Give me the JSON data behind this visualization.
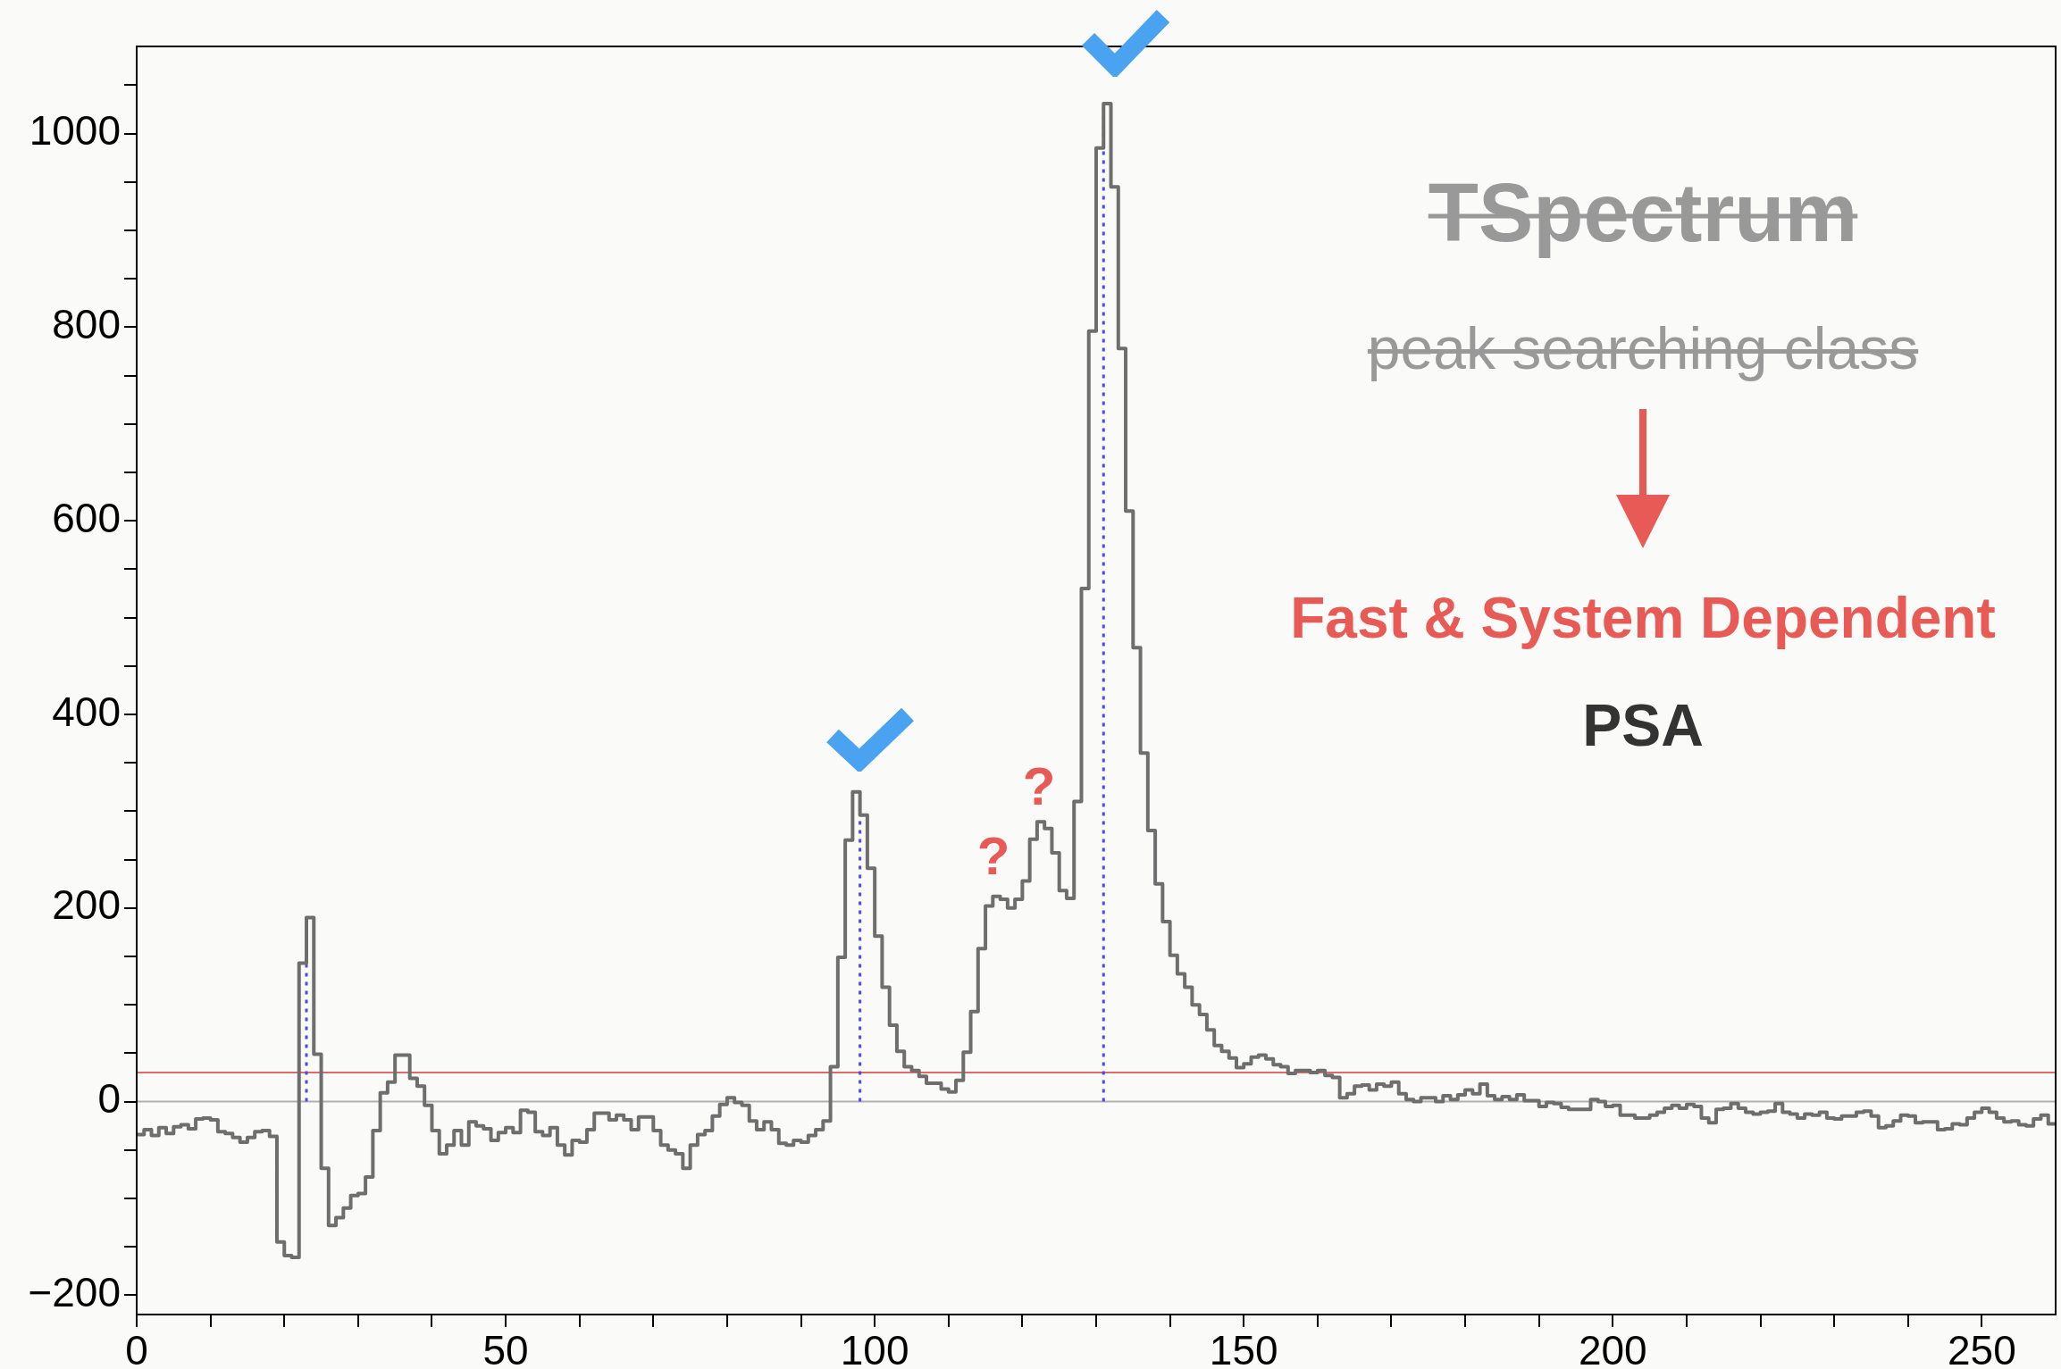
{
  "chart_data": {
    "type": "histogram",
    "bins": [
      0,
      1,
      2,
      3,
      4,
      5,
      6,
      7,
      8,
      9,
      10,
      11,
      12,
      13,
      14,
      15,
      16,
      17,
      18,
      19,
      20,
      21,
      22,
      23,
      24,
      25,
      26,
      27,
      28,
      29,
      30,
      31,
      32,
      33,
      34,
      35,
      36,
      37,
      38,
      39,
      40,
      41,
      42,
      43,
      44,
      45,
      46,
      47,
      48,
      49,
      50,
      51,
      52,
      53,
      54,
      55,
      56,
      57,
      58,
      59,
      60,
      61,
      62,
      63,
      64,
      65,
      66,
      67,
      68,
      69,
      70,
      71,
      72,
      73,
      74,
      75,
      76,
      77,
      78,
      79,
      80,
      81,
      82,
      83,
      84,
      85,
      86,
      87,
      88,
      89,
      90,
      91,
      92,
      93,
      94,
      95,
      96,
      97,
      98,
      99,
      100,
      101,
      102,
      103,
      104,
      105,
      106,
      107,
      108,
      109,
      110,
      111,
      112,
      113,
      114,
      115,
      116,
      117,
      118,
      119,
      120,
      121,
      122,
      123,
      124,
      125,
      126,
      127,
      128,
      129,
      130,
      131,
      132,
      133,
      134,
      135,
      136,
      137,
      138,
      139,
      140,
      141,
      142,
      143,
      144,
      145,
      146,
      147,
      148,
      149,
      150,
      151,
      152,
      153,
      154,
      155,
      156,
      157,
      158,
      159,
      160,
      161,
      162,
      163,
      164,
      165,
      166,
      167,
      168,
      169,
      170,
      171,
      172,
      173,
      174,
      175,
      176,
      177,
      178,
      179,
      180,
      181,
      182,
      183,
      184,
      185,
      186,
      187,
      188,
      189,
      190,
      191,
      192,
      193,
      194,
      195,
      196,
      197,
      198,
      199,
      200,
      201,
      202,
      203,
      204,
      205,
      206,
      207,
      208,
      209,
      210,
      211,
      212,
      213,
      214,
      215,
      216,
      217,
      218,
      219,
      220,
      221,
      222,
      223,
      224,
      225,
      226,
      227,
      228,
      229,
      230,
      231,
      232,
      233,
      234,
      235,
      236,
      237,
      238,
      239,
      240,
      241,
      242,
      243,
      244,
      245,
      246,
      247,
      248,
      249,
      250,
      251,
      252,
      253,
      254,
      255,
      256,
      257,
      258,
      259,
      260
    ],
    "values": [
      -34,
      -29,
      -35,
      -27,
      -33,
      -26,
      -24,
      -28,
      -18,
      -17,
      -19,
      -31,
      -33,
      -37,
      -42,
      -37,
      -31,
      -30,
      -36,
      -145,
      -159,
      -161,
      143,
      190,
      49,
      -69,
      -128,
      -120,
      -110,
      -97,
      -95,
      -78,
      -30,
      9,
      20,
      48,
      48,
      24,
      16,
      -4,
      -30,
      -54,
      -45,
      -30,
      -45,
      -21,
      -25,
      -28,
      -40,
      -32,
      -27,
      -32,
      -9,
      -11,
      -31,
      -35,
      -27,
      -45,
      -55,
      -40,
      -42,
      -29,
      -12,
      -12,
      -19,
      -14,
      -19,
      -29,
      -16,
      -16,
      -30,
      -45,
      -50,
      -54,
      -69,
      -45,
      -34,
      -30,
      -15,
      -3,
      4,
      -1,
      -4,
      -20,
      -29,
      -21,
      -29,
      -43,
      -45,
      -40,
      -42,
      -35,
      -29,
      -20,
      36,
      149,
      270,
      320,
      296,
      241,
      171,
      118,
      79,
      52,
      36,
      32,
      26,
      19,
      19,
      13,
      10,
      22,
      51,
      93,
      158,
      202,
      212,
      209,
      200,
      209,
      228,
      271,
      289,
      282,
      257,
      218,
      210,
      310,
      530,
      796,
      985,
      1031,
      945,
      778,
      610,
      469,
      360,
      280,
      225,
      186,
      151,
      132,
      118,
      100,
      90,
      74,
      58,
      52,
      45,
      35,
      39,
      46,
      48,
      44,
      38,
      36,
      29,
      32,
      32,
      30,
      32,
      27,
      25,
      4,
      8,
      16,
      17,
      12,
      18,
      16,
      20,
      8,
      2,
      0,
      4,
      4,
      0,
      6,
      2,
      7,
      12,
      8,
      18,
      6,
      2,
      5,
      2,
      7,
      1,
      1,
      -5,
      -1,
      -2,
      -6,
      -8,
      -8,
      -8,
      2,
      0,
      -5,
      -4,
      -14,
      -14,
      -17,
      -17,
      -14,
      -11,
      -7,
      -4,
      -7,
      -3,
      -5,
      -17,
      -22,
      -8,
      -7,
      -2,
      -7,
      -11,
      -13,
      -11,
      -10,
      -2,
      -11,
      -13,
      -17,
      -13,
      -14,
      -11,
      -17,
      -18,
      -15,
      -15,
      -11,
      -10,
      -15,
      -27,
      -25,
      -20,
      -14,
      -15,
      -22,
      -21,
      -21,
      -29,
      -28,
      -23,
      -24,
      -17,
      -11,
      -7,
      -11,
      -17,
      -21,
      -20,
      -24,
      -25,
      -18,
      -14,
      -23
    ],
    "color": "#6e6e6e",
    "xlim": [
      0,
      260
    ],
    "xticks": [
      0,
      {
        "value": 10,
        "label": null
      },
      {
        "value": 20,
        "label": null
      },
      {
        "value": 30,
        "label": null
      },
      {
        "value": 40,
        "label": null
      },
      50,
      {
        "value": 60,
        "label": null
      },
      {
        "value": 70,
        "label": null
      },
      {
        "value": 80,
        "label": null
      },
      {
        "value": 90,
        "label": null
      },
      100,
      {
        "value": 110,
        "label": null
      },
      {
        "value": 120,
        "label": null
      },
      {
        "value": 130,
        "label": null
      },
      {
        "value": 140,
        "label": null
      },
      150,
      {
        "value": 160,
        "label": null
      },
      {
        "value": 170,
        "label": null
      },
      {
        "value": 180,
        "label": null
      },
      {
        "value": 190,
        "label": null
      },
      200,
      {
        "value": 210,
        "label": null
      },
      {
        "value": 220,
        "label": null
      },
      {
        "value": 230,
        "label": null
      },
      {
        "value": 240,
        "label": null
      },
      250
    ],
    "ylim": [
      -220,
      1090
    ],
    "yticks": [
      {
        "value": -200,
        "label": "−200"
      },
      {
        "value": -150,
        "label": null
      },
      {
        "value": -100,
        "label": null
      },
      {
        "value": -50,
        "label": null
      },
      0,
      {
        "value": 50,
        "label": null
      },
      {
        "value": 100,
        "label": null
      },
      {
        "value": 150,
        "label": null
      },
      200,
      {
        "value": 250,
        "label": null
      },
      {
        "value": 300,
        "label": null
      },
      {
        "value": 350,
        "label": null
      },
      400,
      {
        "value": 450,
        "label": null
      },
      {
        "value": 500,
        "label": null
      },
      {
        "value": 550,
        "label": null
      },
      600,
      {
        "value": 650,
        "label": null
      },
      {
        "value": 700,
        "label": null
      },
      {
        "value": 750,
        "label": null
      },
      800,
      {
        "value": 850,
        "label": null
      },
      {
        "value": 900,
        "label": null
      },
      {
        "value": 950,
        "label": null
      },
      1000,
      {
        "value": 1050,
        "label": null
      }
    ],
    "ref_lines": [
      {
        "axis": "y",
        "value": 0,
        "color": "#b0b0b0"
      },
      {
        "axis": "y",
        "value": 30,
        "color": "#e06a6a"
      },
      {
        "axis": "x",
        "value": 23,
        "color": "#4a4aee",
        "line_style": "dotted"
      },
      {
        "axis": "x",
        "value": 98,
        "color": "#4a4aee",
        "line_style": "dotted"
      },
      {
        "axis": "x",
        "value": 131,
        "color": "#4a4aee",
        "line_style": "dotted"
      }
    ],
    "annotations": [
      "TSpectrum",
      "peak searching class",
      "Fast & System Dependent",
      "PSA",
      "?",
      "?"
    ],
    "grid": false,
    "legend": false
  }
}
